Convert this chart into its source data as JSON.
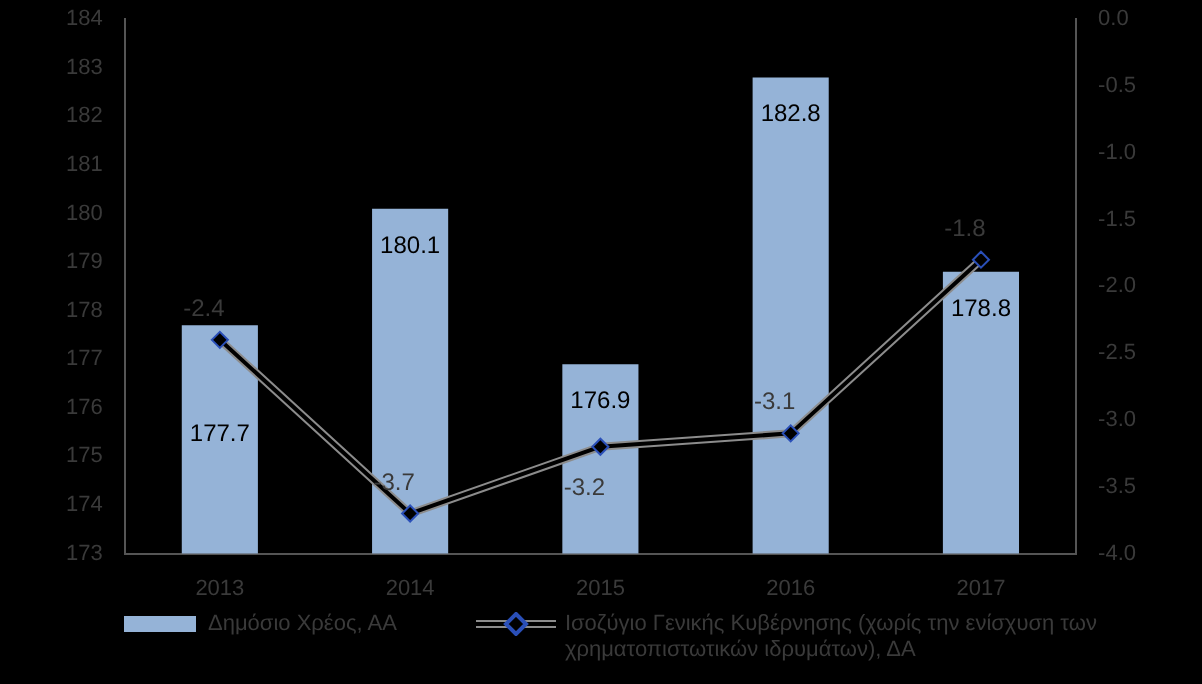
{
  "chart_data": {
    "type": "bar",
    "categories": [
      "2013",
      "2014",
      "2015",
      "2016",
      "2017"
    ],
    "series": [
      {
        "name": "Δημόσιο Χρέος, ΑΑ",
        "color": "#95b3d7",
        "values": [
          177.7,
          180.1,
          176.9,
          182.8,
          178.8
        ]
      },
      {
        "name": "Ισοζύγιο Γενικής Κυβέρνησης (χωρίς την ενίσχυση των χρηματοπιστωτικών ιδρυμάτων), ΔΑ",
        "type": "line",
        "axis": "y2",
        "color": "#000000",
        "values": [
          -2.4,
          -3.7,
          -3.2,
          -3.1,
          -1.8
        ]
      }
    ],
    "ylim": [
      173,
      184
    ],
    "yticks": [
      173,
      174,
      175,
      176,
      177,
      178,
      179,
      180,
      181,
      182,
      183,
      184
    ],
    "y2lim": [
      -4,
      0
    ],
    "y2ticks": [
      {
        "value": 0,
        "label": "0.0"
      },
      {
        "value": -0.5,
        "label": "-0.5"
      },
      {
        "value": -1,
        "label": "-1.0"
      },
      {
        "value": -1.5,
        "label": "-1.5"
      },
      {
        "value": -2,
        "label": "-2.0"
      },
      {
        "value": -2.5,
        "label": "-2.5"
      },
      {
        "value": -3,
        "label": "-3.0"
      },
      {
        "value": -3.5,
        "label": "-3.5"
      },
      {
        "value": -4,
        "label": "-4.0"
      }
    ],
    "data_labels": true,
    "grid": false,
    "legend": "bottom",
    "marker": "diamond",
    "line_style": "solid"
  }
}
